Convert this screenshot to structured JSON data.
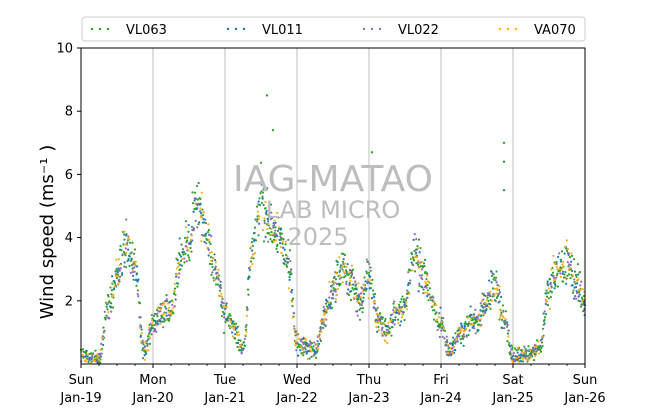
{
  "chart_data": {
    "type": "scatter",
    "ylabel": "Wind speed (ms⁻¹ )",
    "ylim": [
      0,
      10
    ],
    "yticks": [
      2,
      4,
      6,
      8,
      10
    ],
    "x_range": [
      "2025-01-19",
      "2025-01-26"
    ],
    "xticks": [
      {
        "day": "Sun",
        "date": "Jan-19"
      },
      {
        "day": "Mon",
        "date": "Jan-20"
      },
      {
        "day": "Tue",
        "date": "Jan-21"
      },
      {
        "day": "Wed",
        "date": "Jan-22"
      },
      {
        "day": "Thu",
        "date": "Jan-23"
      },
      {
        "day": "Fri",
        "date": "Jan-24"
      },
      {
        "day": "Sat",
        "date": "Jan-25"
      },
      {
        "day": "Sun",
        "date": "Jan-26"
      }
    ],
    "grid": "vertical",
    "legend_position": "top",
    "series": [
      {
        "name": "VL063",
        "color": "#2ca02c"
      },
      {
        "name": "VL011",
        "color": "#1f77b4"
      },
      {
        "name": "VL022",
        "color": "#9467bd"
      },
      {
        "name": "VA070",
        "color": "#ffae1a"
      }
    ],
    "daily_profile": [
      {
        "date": "2025-01-19",
        "hours": [
          0,
          3,
          6,
          9,
          12,
          15,
          18,
          21
        ],
        "values": [
          0.3,
          0.2,
          0.1,
          1.8,
          2.7,
          3.9,
          3.1,
          0.4
        ]
      },
      {
        "date": "2025-01-20",
        "hours": [
          0,
          3,
          6,
          9,
          12,
          15,
          18,
          21
        ],
        "values": [
          1.2,
          1.6,
          1.7,
          3.4,
          3.9,
          5.1,
          4.0,
          2.8
        ]
      },
      {
        "date": "2025-01-21",
        "hours": [
          0,
          3,
          6,
          9,
          12,
          15,
          18,
          21
        ],
        "values": [
          1.6,
          1.2,
          0.4,
          3.5,
          5.2,
          4.4,
          4.0,
          3.3
        ]
      },
      {
        "date": "2025-01-22",
        "hours": [
          0,
          3,
          6,
          9,
          12,
          15,
          18,
          21
        ],
        "values": [
          0.7,
          0.5,
          0.4,
          1.4,
          2.4,
          3.0,
          2.6,
          1.9
        ]
      },
      {
        "date": "2025-01-23",
        "hours": [
          0,
          3,
          6,
          9,
          12,
          15,
          18,
          21
        ],
        "values": [
          2.8,
          1.4,
          1.0,
          1.6,
          1.8,
          3.5,
          2.8,
          2.0
        ]
      },
      {
        "date": "2025-01-24",
        "hours": [
          0,
          3,
          6,
          9,
          12,
          15,
          18,
          21
        ],
        "values": [
          1.2,
          0.4,
          0.9,
          1.3,
          1.4,
          1.9,
          2.5,
          1.4
        ]
      },
      {
        "date": "2025-01-25",
        "hours": [
          0,
          3,
          6,
          9,
          12,
          15,
          18,
          21
        ],
        "values": [
          0.2,
          0.3,
          0.3,
          0.5,
          2.4,
          3.1,
          3.2,
          2.6
        ]
      },
      {
        "date": "2025-01-26",
        "hours": [
          0
        ],
        "values": [
          2.0
        ]
      }
    ],
    "notable_points": [
      {
        "date": "2025-01-21",
        "hour": 14,
        "value": 8.5
      },
      {
        "date": "2025-01-21",
        "hour": 16,
        "value": 7.4
      },
      {
        "date": "2025-01-23",
        "hour": 1,
        "value": 6.7
      },
      {
        "date": "2025-01-24",
        "hour": 21,
        "value": 7.0
      },
      {
        "date": "2025-01-24",
        "hour": 21,
        "value": 6.4
      },
      {
        "date": "2025-01-24",
        "hour": 21,
        "value": 5.5
      }
    ]
  },
  "watermark": {
    "line1": "IAG-MATAO",
    "line2": "LAB MICRO",
    "line3": "2025"
  }
}
